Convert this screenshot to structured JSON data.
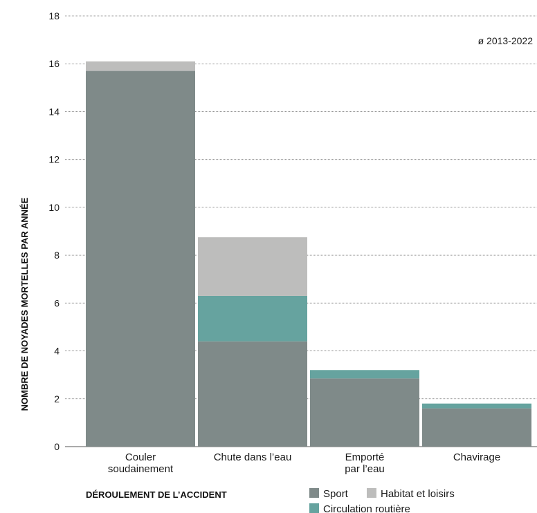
{
  "chart_data": {
    "type": "bar",
    "stacked": true,
    "annotation": "ø 2013-2022",
    "ylabel": "NOMBRE DE NOYADES MORTELLES PAR ANNÉE",
    "xlabel": "DÉROULEMENT DE L’ACCIDENT",
    "ylim": [
      0,
      18
    ],
    "yticks": [
      0,
      2,
      4,
      6,
      8,
      10,
      12,
      14,
      16,
      18
    ],
    "categories": [
      [
        "Couler",
        "soudainement"
      ],
      [
        "Chute dans l’eau"
      ],
      [
        "Emporté",
        "par l’eau"
      ],
      [
        "Chavirage"
      ]
    ],
    "series": [
      {
        "name": "Sport",
        "color": "#7f8a89",
        "values": [
          15.7,
          4.4,
          2.85,
          1.6
        ]
      },
      {
        "name": "Circulation routière",
        "color": "#66a39f",
        "values": [
          0,
          1.9,
          0.35,
          0.2
        ]
      },
      {
        "name": "Habitat et loisirs",
        "color": "#bdbdbc",
        "values": [
          0.4,
          2.45,
          0,
          0
        ]
      }
    ],
    "legend_order": [
      "Sport",
      "Habitat et loisirs",
      "Circulation routière"
    ],
    "grid": true,
    "legend_position": "bottom"
  }
}
